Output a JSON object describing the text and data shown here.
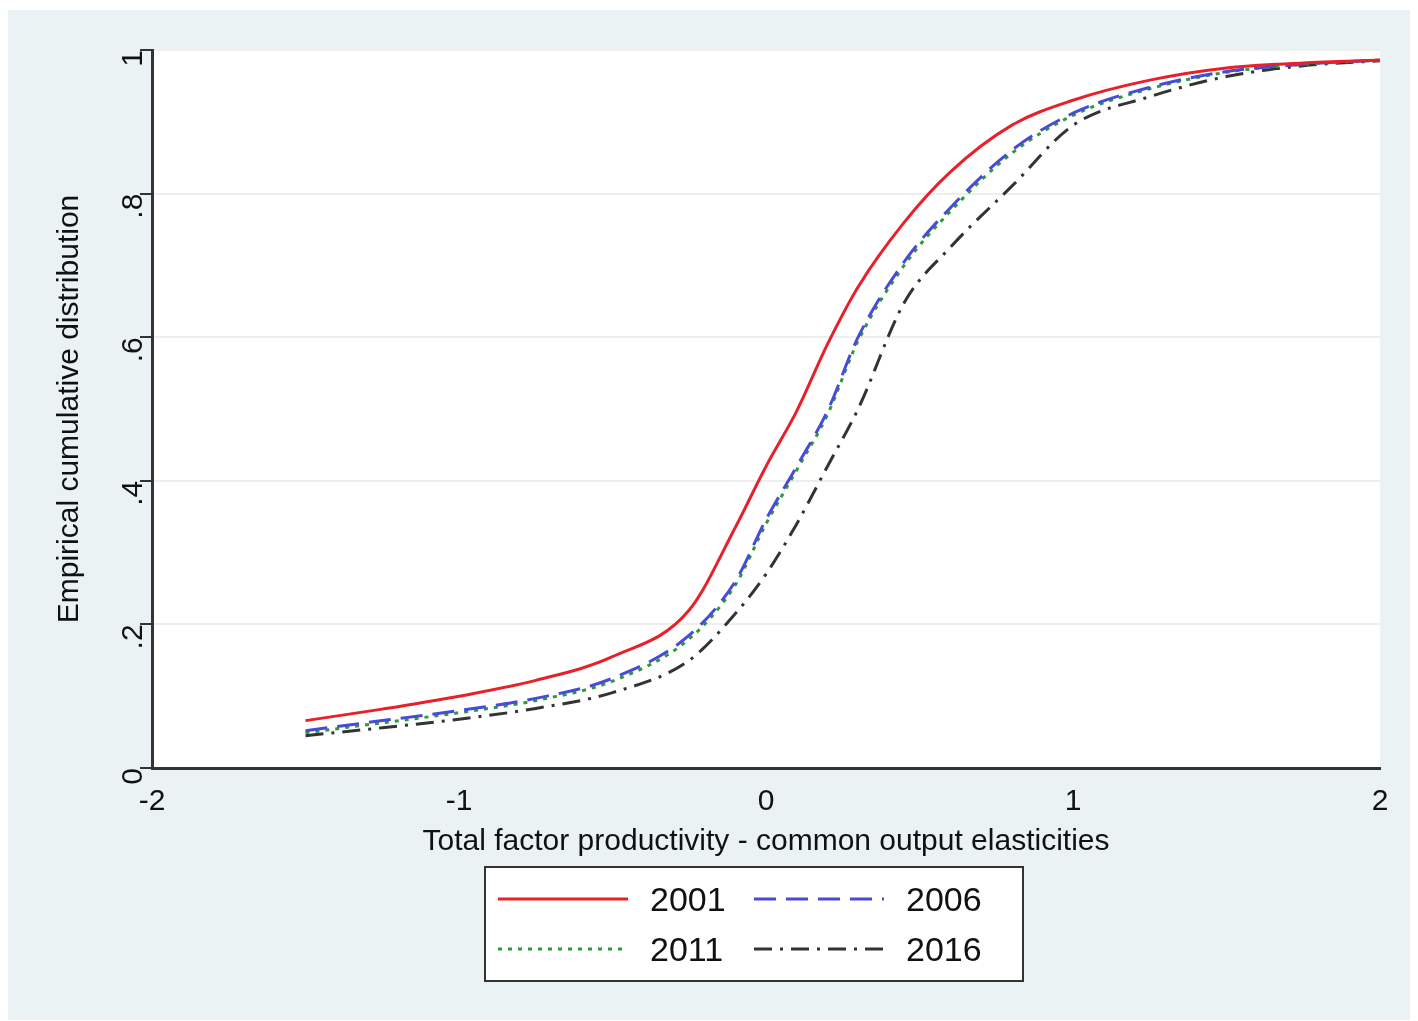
{
  "chart_data": {
    "type": "line",
    "xlabel": "Total factor productivity - common output elasticities",
    "ylabel": "Empirical cumulative distribution",
    "xlim": [
      -2,
      2
    ],
    "xticks": [
      -2,
      -1,
      0,
      1,
      2
    ],
    "ylim": [
      0,
      1
    ],
    "yticks": [
      {
        "value": 0,
        "label": "0"
      },
      {
        "value": 0.2,
        "label": ".2"
      },
      {
        "value": 0.4,
        "label": ".4"
      },
      {
        "value": 0.6,
        "label": ".6"
      },
      {
        "value": 0.8,
        "label": ".8"
      },
      {
        "value": 1,
        "label": "1"
      }
    ],
    "grid": "y",
    "legend": "bottom",
    "marker": "none",
    "x": [
      -1.5,
      -1.25,
      -1,
      -0.75,
      -0.5,
      -0.25,
      -0.1,
      0,
      0.1,
      0.2,
      0.3,
      0.45,
      0.6,
      0.8,
      1,
      1.25,
      1.5,
      1.75,
      2
    ],
    "series": [
      {
        "name": "2001",
        "color": "#e8202a",
        "line_style": "solid",
        "values": [
          0.066,
          0.082,
          0.1,
          0.122,
          0.155,
          0.22,
          0.335,
          0.42,
          0.497,
          0.59,
          0.67,
          0.76,
          0.83,
          0.895,
          0.93,
          0.958,
          0.975,
          0.982,
          0.986
        ]
      },
      {
        "name": "2006",
        "color": "#4a4ad8",
        "line_style": "dashed",
        "values": [
          0.052,
          0.066,
          0.08,
          0.097,
          0.125,
          0.185,
          0.26,
          0.346,
          0.42,
          0.497,
          0.6,
          0.705,
          0.78,
          0.86,
          0.912,
          0.948,
          0.97,
          0.98,
          0.986
        ]
      },
      {
        "name": "2011",
        "color": "#2a9a3a",
        "line_style": "dotted",
        "values": [
          0.049,
          0.063,
          0.077,
          0.094,
          0.121,
          0.18,
          0.255,
          0.34,
          0.415,
          0.492,
          0.595,
          0.7,
          0.775,
          0.856,
          0.909,
          0.946,
          0.969,
          0.98,
          0.986
        ]
      },
      {
        "name": "2016",
        "color": "#333333",
        "line_style": "dashdot",
        "values": [
          0.045,
          0.056,
          0.068,
          0.083,
          0.105,
          0.15,
          0.215,
          0.27,
          0.34,
          0.42,
          0.5,
          0.648,
          0.725,
          0.81,
          0.895,
          0.935,
          0.963,
          0.978,
          0.985
        ]
      }
    ]
  }
}
